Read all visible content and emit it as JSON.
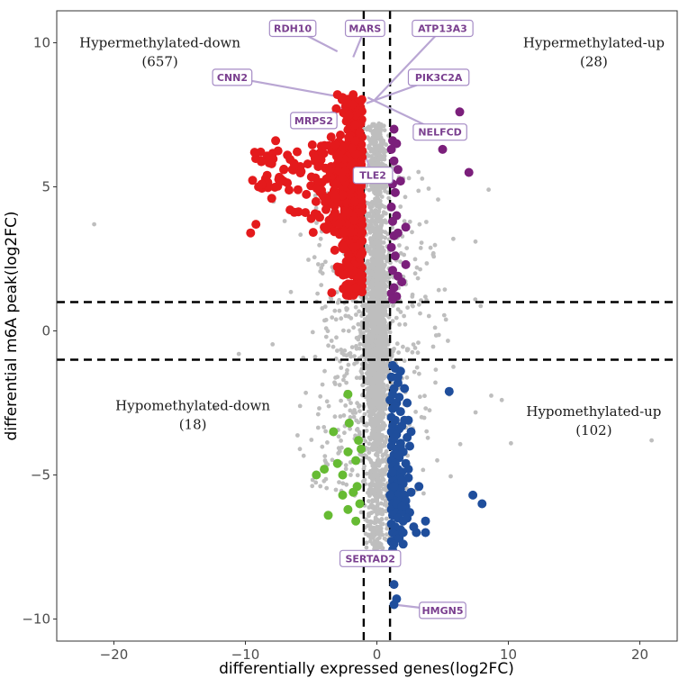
{
  "chart_data": {
    "type": "scatter",
    "title": "",
    "xlabel": "differentially expressed genes(log2FC)",
    "ylabel": "differential m6A peak(log2FC)",
    "xlim": [
      -23.5,
      23.5
    ],
    "ylim": [
      -10.6,
      10.9
    ],
    "xticks": [
      -20,
      -10,
      0,
      10,
      20
    ],
    "yticks": [
      -10,
      -5,
      0,
      5,
      10
    ],
    "xtick_labels": [
      "−20",
      "−10",
      "0",
      "10",
      "20"
    ],
    "ytick_labels": [
      "−10",
      "−5",
      "0",
      "5",
      "10"
    ],
    "thresholds": {
      "x": [
        -1,
        1
      ],
      "y": [
        -1,
        1
      ]
    },
    "colors": {
      "background_points": "#bebebe",
      "hypermethylated_down": "#e41a1c",
      "hypermethylated_up": "#7b1f7b",
      "hypomethylated_down": "#66bb33",
      "hypomethylated_up": "#1f4e9c",
      "label_text": "#7a3f8f",
      "label_border": "#a58bc5",
      "label_leader": "#b9a6d3",
      "threshold_line": "#000000"
    },
    "quadrants": [
      {
        "name": "Hypermethylated-down",
        "count": "(657)",
        "anchor": [
          -16.5,
          10
        ]
      },
      {
        "name": "Hypermethylated-up",
        "count": "(28)",
        "anchor": [
          16.5,
          10
        ]
      },
      {
        "name": "Hypomethylated-down",
        "count": "(18)",
        "anchor": [
          -14,
          -2.6
        ]
      },
      {
        "name": "Hypomethylated-up",
        "count": "(102)",
        "anchor": [
          16.5,
          -2.8
        ]
      }
    ],
    "series": [
      {
        "name": "Hypermethylated-up",
        "color": "#7b1f7b",
        "points": [
          [
            1.2,
            6.6
          ],
          [
            1.5,
            6.5
          ],
          [
            1.1,
            6.3
          ],
          [
            5.0,
            6.3
          ],
          [
            6.3,
            7.6
          ],
          [
            7.0,
            5.5
          ],
          [
            1.3,
            5.9
          ],
          [
            1.6,
            5.6
          ],
          [
            1.2,
            5.1
          ],
          [
            1.4,
            4.8
          ],
          [
            1.1,
            4.3
          ],
          [
            1.5,
            4.0
          ],
          [
            1.2,
            3.8
          ],
          [
            2.2,
            3.6
          ],
          [
            1.3,
            3.3
          ],
          [
            1.1,
            2.9
          ],
          [
            1.4,
            2.6
          ],
          [
            2.2,
            2.3
          ],
          [
            1.2,
            2.1
          ],
          [
            1.6,
            1.9
          ],
          [
            1.9,
            1.7
          ],
          [
            1.3,
            1.5
          ],
          [
            1.1,
            1.3
          ],
          [
            1.5,
            1.2
          ],
          [
            1.2,
            1.1
          ],
          [
            1.3,
            7.0
          ],
          [
            1.8,
            5.2
          ],
          [
            1.6,
            3.4
          ]
        ]
      },
      {
        "name": "Hypomethylated-down",
        "color": "#66bb33",
        "points": [
          [
            -2.2,
            -2.2
          ],
          [
            -2.1,
            -3.2
          ],
          [
            -3.3,
            -3.5
          ],
          [
            -1.4,
            -3.8
          ],
          [
            -2.2,
            -4.2
          ],
          [
            -1.6,
            -4.5
          ],
          [
            -3.0,
            -4.6
          ],
          [
            -4.0,
            -4.8
          ],
          [
            -2.6,
            -5.0
          ],
          [
            -4.6,
            -5.0
          ],
          [
            -1.5,
            -5.4
          ],
          [
            -1.8,
            -5.6
          ],
          [
            -2.6,
            -5.7
          ],
          [
            -1.3,
            -6.0
          ],
          [
            -2.2,
            -6.2
          ],
          [
            -3.7,
            -6.4
          ],
          [
            -1.6,
            -6.6
          ],
          [
            -1.2,
            -4.1
          ]
        ]
      },
      {
        "name": "Hypomethylated-up",
        "color": "#1f4e9c",
        "points": [
          [
            1.2,
            -1.2
          ],
          [
            1.4,
            -1.3
          ],
          [
            1.8,
            -1.4
          ],
          [
            1.1,
            -1.6
          ],
          [
            1.6,
            -1.8
          ],
          [
            1.3,
            -2.0
          ],
          [
            2.1,
            -2.0
          ],
          [
            1.2,
            -2.2
          ],
          [
            1.7,
            -2.3
          ],
          [
            1.0,
            -2.4
          ],
          [
            1.5,
            -2.5
          ],
          [
            2.3,
            -2.5
          ],
          [
            1.2,
            -2.7
          ],
          [
            1.8,
            -2.8
          ],
          [
            1.1,
            -3.0
          ],
          [
            1.4,
            -3.1
          ],
          [
            2.1,
            -3.1
          ],
          [
            1.2,
            -3.3
          ],
          [
            1.7,
            -3.4
          ],
          [
            1.1,
            -3.5
          ],
          [
            1.5,
            -3.6
          ],
          [
            2.3,
            -3.7
          ],
          [
            1.2,
            -3.8
          ],
          [
            1.8,
            -3.9
          ],
          [
            1.1,
            -4.0
          ],
          [
            1.5,
            -4.1
          ],
          [
            2.0,
            -4.2
          ],
          [
            1.3,
            -4.3
          ],
          [
            1.7,
            -4.4
          ],
          [
            1.1,
            -4.5
          ],
          [
            1.4,
            -4.6
          ],
          [
            2.2,
            -4.6
          ],
          [
            1.2,
            -4.7
          ],
          [
            1.6,
            -4.8
          ],
          [
            1.9,
            -4.9
          ],
          [
            1.1,
            -5.0
          ],
          [
            1.4,
            -5.0
          ],
          [
            1.8,
            -5.1
          ],
          [
            2.4,
            -5.1
          ],
          [
            1.2,
            -5.2
          ],
          [
            1.6,
            -5.3
          ],
          [
            2.0,
            -5.3
          ],
          [
            1.1,
            -5.4
          ],
          [
            1.4,
            -5.5
          ],
          [
            1.8,
            -5.5
          ],
          [
            1.2,
            -5.6
          ],
          [
            1.6,
            -5.7
          ],
          [
            2.1,
            -5.7
          ],
          [
            1.1,
            -5.8
          ],
          [
            1.4,
            -5.9
          ],
          [
            1.8,
            -5.9
          ],
          [
            1.2,
            -6.0
          ],
          [
            1.6,
            -6.1
          ],
          [
            2.2,
            -6.1
          ],
          [
            1.1,
            -6.2
          ],
          [
            1.5,
            -6.3
          ],
          [
            1.9,
            -6.3
          ],
          [
            1.2,
            -6.4
          ],
          [
            1.6,
            -6.5
          ],
          [
            2.0,
            -6.6
          ],
          [
            1.1,
            -6.7
          ],
          [
            1.4,
            -6.8
          ],
          [
            1.8,
            -6.9
          ],
          [
            1.2,
            -7.0
          ],
          [
            1.5,
            -7.1
          ],
          [
            1.1,
            -7.3
          ],
          [
            1.3,
            -7.4
          ],
          [
            1.5,
            -6.0
          ],
          [
            1.3,
            -5.4
          ],
          [
            1.9,
            -5.2
          ],
          [
            1.6,
            -4.3
          ],
          [
            1.3,
            -3.7
          ],
          [
            1.9,
            -3.3
          ],
          [
            1.4,
            -2.6
          ],
          [
            1.6,
            -1.6
          ],
          [
            2.5,
            -4.0
          ],
          [
            2.6,
            -5.6
          ],
          [
            2.5,
            -6.3
          ],
          [
            1.7,
            -7.2
          ],
          [
            2.0,
            -7.0
          ],
          [
            1.2,
            -7.6
          ],
          [
            2.8,
            -6.8
          ],
          [
            3.0,
            -7.0
          ],
          [
            2.4,
            -4.8
          ],
          [
            2.2,
            -5.9
          ],
          [
            2.3,
            -6.5
          ],
          [
            1.9,
            -6.1
          ],
          [
            1.2,
            -4.9
          ],
          [
            1.0,
            -5.7
          ],
          [
            1.8,
            -4.0
          ],
          [
            2.4,
            -3.1
          ],
          [
            2.6,
            -3.5
          ],
          [
            5.5,
            -2.1
          ],
          [
            7.3,
            -5.7
          ],
          [
            8.0,
            -6.0
          ],
          [
            3.7,
            -6.6
          ],
          [
            3.7,
            -7.0
          ],
          [
            2.0,
            -7.4
          ],
          [
            1.3,
            -8.8
          ],
          [
            1.5,
            -9.3
          ],
          [
            1.3,
            -9.5
          ],
          [
            3.2,
            -5.4
          ]
        ]
      }
    ],
    "labeled_genes": [
      {
        "name": "RDH10",
        "point": [
          -3.0,
          9.7
        ],
        "box": [
          -6.4,
          10.5
        ]
      },
      {
        "name": "MARS",
        "point": [
          -1.8,
          9.5
        ],
        "box": [
          -0.9,
          10.5
        ]
      },
      {
        "name": "ATP13A3",
        "point": [
          -0.2,
          8.0
        ],
        "box": [
          5.0,
          10.5
        ]
      },
      {
        "name": "CNN2",
        "point": [
          -1.3,
          8.0
        ],
        "box": [
          -11.0,
          8.8
        ]
      },
      {
        "name": "PIK3C2A",
        "point": [
          -0.8,
          7.9
        ],
        "box": [
          4.7,
          8.8
        ]
      },
      {
        "name": "MRPS2",
        "point": [
          -1.5,
          8.0
        ],
        "box": [
          -4.8,
          7.3
        ]
      },
      {
        "name": "NELFCD",
        "point": [
          -0.7,
          8.1
        ],
        "box": [
          4.8,
          6.9
        ]
      },
      {
        "name": "TLE2",
        "point": [
          -1.6,
          6.9
        ],
        "box": [
          -0.3,
          5.4
        ]
      },
      {
        "name": "SERTAD2",
        "point": [
          1.2,
          -8.0
        ],
        "box": [
          -0.5,
          -7.9
        ]
      },
      {
        "name": "HMGN5",
        "point": [
          1.3,
          -9.5
        ],
        "box": [
          5.0,
          -9.7
        ]
      }
    ]
  }
}
